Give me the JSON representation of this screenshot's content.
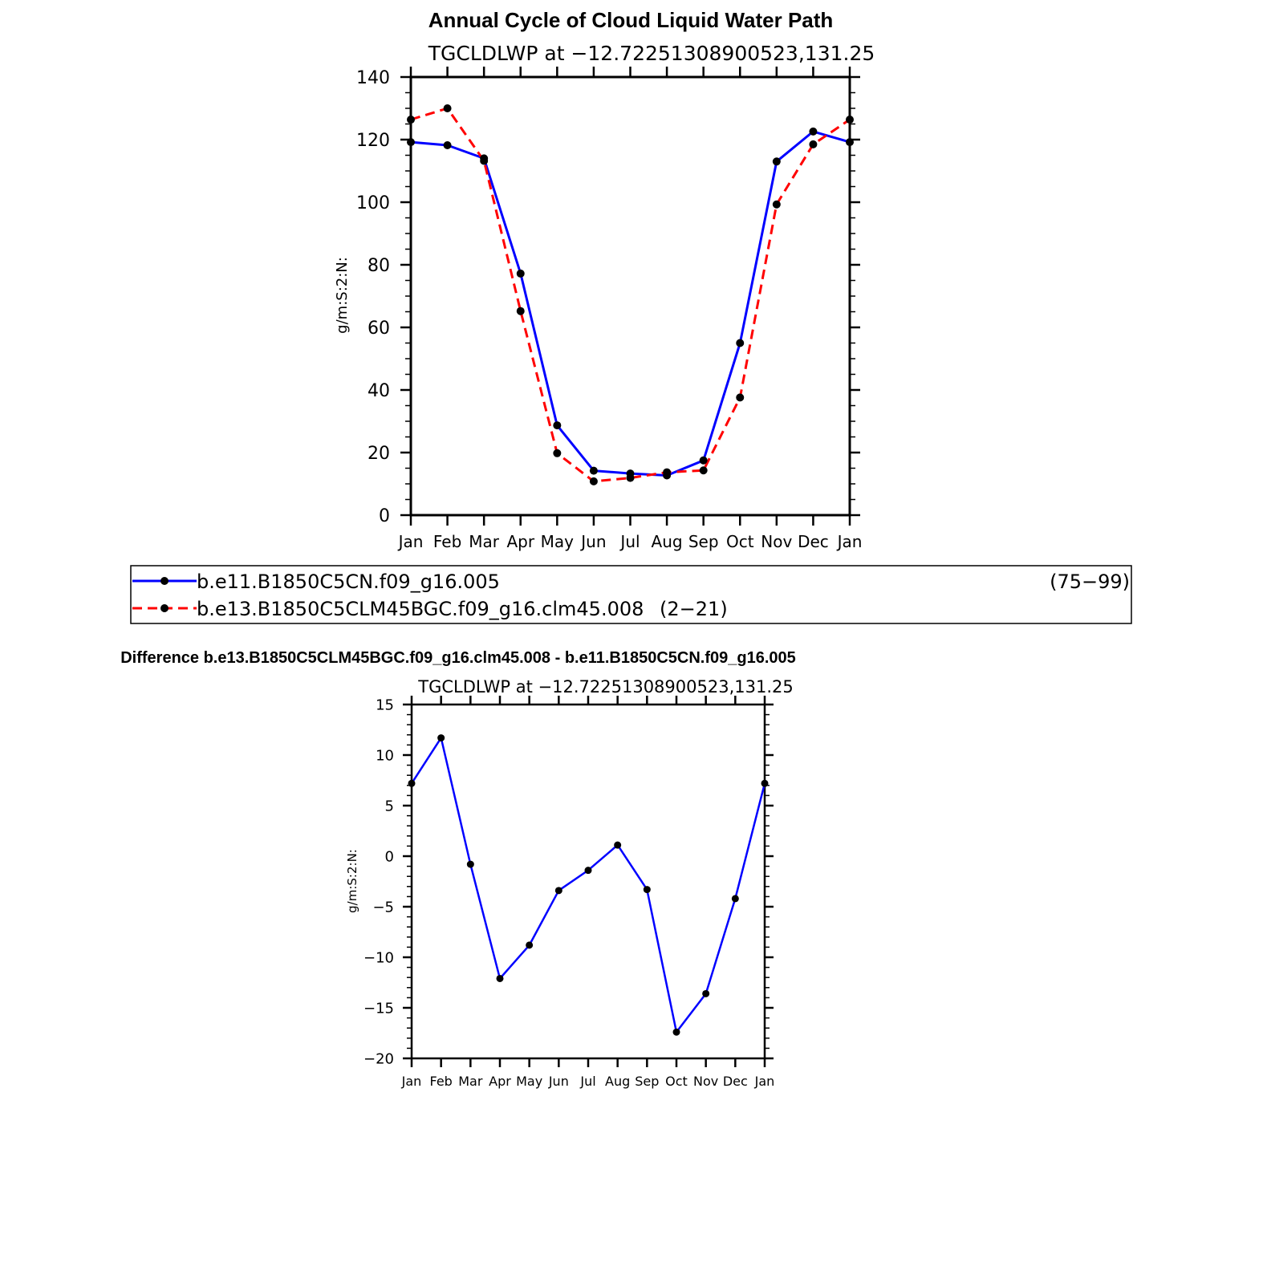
{
  "colors": {
    "control_series": "#0000ff",
    "experiment_series": "#ff0000",
    "markers": "#000000",
    "frame": "#000000",
    "background": "#ffffff"
  },
  "legend": {
    "entries": [
      {
        "label": "b.e11.B1850C5CN.f09_g16.005",
        "years": "(75−99)",
        "color": "#0000ff",
        "line_style": "solid",
        "marker": "filled-circle"
      },
      {
        "label": "b.e13.B1850C5CLM45BGC.f09_g16.clm45.008",
        "years": "(2−21)",
        "color": "#ff0000",
        "line_style": "dashed",
        "marker": "filled-circle"
      }
    ]
  },
  "chart_data": [
    {
      "type": "line",
      "title": "Annual Cycle of Cloud Liquid Water Path",
      "subtitle": "TGCLDLWP at −12.72251308900523,131.25",
      "xlabel": "",
      "ylabel": "g/m:S:2:N:",
      "categories": [
        "Jan",
        "Feb",
        "Mar",
        "Apr",
        "May",
        "Jun",
        "Jul",
        "Aug",
        "Sep",
        "Oct",
        "Nov",
        "Dec",
        "Jan"
      ],
      "ylim": [
        0,
        140
      ],
      "y_major_ticks": [
        0,
        20,
        40,
        60,
        80,
        100,
        120,
        140
      ],
      "y_tick_labels": [
        "0",
        "20",
        "40",
        "60",
        "80",
        "100",
        "120",
        "140"
      ],
      "y_minor_step": 5,
      "grid": false,
      "series": [
        {
          "name": "b.e11.B1850C5CN.f09_g16.005",
          "color": "#0000ff",
          "dashed": false,
          "values": [
            119.2,
            118.2,
            114.0,
            77.2,
            28.7,
            14.2,
            13.3,
            12.7,
            17.5,
            55.0,
            113.0,
            122.6,
            119.2
          ]
        },
        {
          "name": "b.e13.B1850C5CLM45BGC.f09_g16.clm45.008",
          "color": "#ff0000",
          "dashed": true,
          "values": [
            126.4,
            130.0,
            113.2,
            65.2,
            19.8,
            10.8,
            11.9,
            13.7,
            14.3,
            37.6,
            99.3,
            118.5,
            126.4
          ]
        }
      ]
    },
    {
      "type": "line",
      "title": "Difference b.e13.B1850C5CLM45BGC.f09_g16.clm45.008 - b.e11.B1850C5CN.f09_g16.005",
      "subtitle": "TGCLDLWP at −12.72251308900523,131.25",
      "xlabel": "",
      "ylabel": "g/m:S:2:N:",
      "categories": [
        "Jan",
        "Feb",
        "Mar",
        "Apr",
        "May",
        "Jun",
        "Jul",
        "Aug",
        "Sep",
        "Oct",
        "Nov",
        "Dec",
        "Jan"
      ],
      "ylim": [
        -20,
        15
      ],
      "y_major_ticks": [
        -20,
        -15,
        -10,
        -5,
        0,
        5,
        10,
        15
      ],
      "y_tick_labels": [
        "−20",
        "−15",
        "−10",
        "−5",
        "0",
        "5",
        "10",
        "15"
      ],
      "y_minor_step": 1,
      "grid": false,
      "series": [
        {
          "name": "",
          "color": "#0000ff",
          "dashed": false,
          "values": [
            7.2,
            11.7,
            -0.8,
            -12.1,
            -8.8,
            -3.4,
            -1.4,
            1.1,
            -3.3,
            -17.4,
            -13.6,
            -4.2,
            7.2
          ]
        }
      ]
    }
  ]
}
